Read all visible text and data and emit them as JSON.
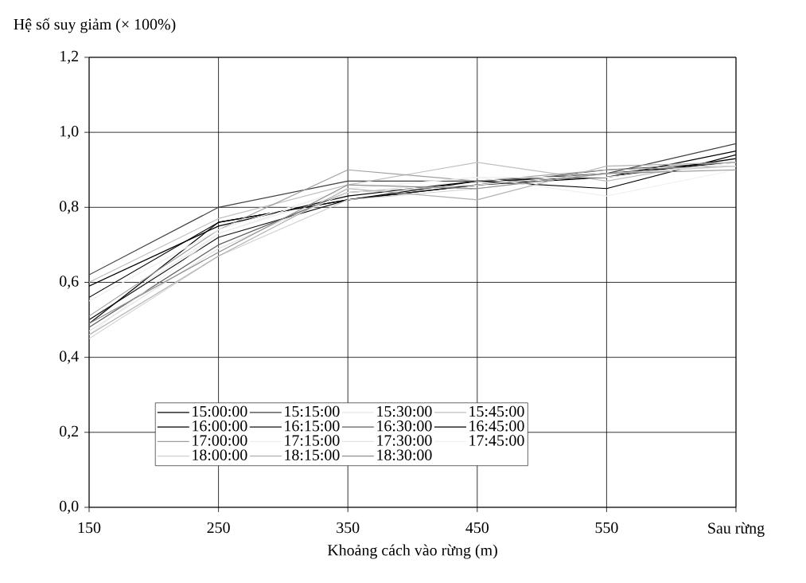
{
  "chart_data": {
    "type": "line",
    "xlabel": "Khoảng cách vào rừng (m)",
    "ylabel": "Hệ số suy giảm (× 100%)",
    "categories": [
      "150",
      "250",
      "350",
      "450",
      "550",
      "Sau rừng"
    ],
    "ylim": [
      0,
      1.2
    ],
    "yticks": [
      {
        "value": 0,
        "label": "0,0"
      },
      {
        "value": 0.2,
        "label": "0,2"
      },
      {
        "value": 0.4,
        "label": "0,4"
      },
      {
        "value": 0.6,
        "label": "0,6"
      },
      {
        "value": 0.8,
        "label": "0,8"
      },
      {
        "value": 1.0,
        "label": "1,0"
      },
      {
        "value": 1.2,
        "label": "1,2"
      }
    ],
    "grid": true,
    "legend": "bottom",
    "line_style": "solid",
    "marker": "none",
    "series": [
      {
        "name": "15:00:00",
        "color": "#000000",
        "values": [
          0.56,
          0.76,
          0.82,
          0.86,
          0.88,
          0.95
        ]
      },
      {
        "name": "15:15:00",
        "color": "#404040",
        "values": [
          0.62,
          0.8,
          0.87,
          0.87,
          0.89,
          0.97
        ]
      },
      {
        "name": "15:30:00",
        "color": "#e8e8e8",
        "values": [
          0.5,
          0.73,
          0.84,
          0.87,
          0.88,
          0.93
        ]
      },
      {
        "name": "15:45:00",
        "color": "#c0c0c0",
        "values": [
          0.6,
          0.77,
          0.86,
          0.92,
          0.87,
          0.93
        ]
      },
      {
        "name": "16:00:00",
        "color": "#000000",
        "values": [
          0.49,
          0.76,
          0.82,
          0.87,
          0.85,
          0.94
        ]
      },
      {
        "name": "16:15:00",
        "color": "#101010",
        "values": [
          0.5,
          0.72,
          0.82,
          0.86,
          0.89,
          0.92
        ]
      },
      {
        "name": "16:30:00",
        "color": "#606060",
        "values": [
          0.48,
          0.7,
          0.84,
          0.86,
          0.9,
          0.92
        ]
      },
      {
        "name": "16:45:00",
        "color": "#000000",
        "values": [
          0.59,
          0.75,
          0.83,
          0.87,
          0.88,
          0.93
        ]
      },
      {
        "name": "17:00:00",
        "color": "#a0a0a0",
        "values": [
          0.51,
          0.74,
          0.9,
          0.87,
          0.9,
          0.91
        ]
      },
      {
        "name": "17:15:00",
        "color": "#eeeeee",
        "values": [
          0.46,
          0.73,
          0.85,
          0.88,
          0.88,
          0.92
        ]
      },
      {
        "name": "17:30:00",
        "color": "#e4e4e4",
        "values": [
          0.47,
          0.69,
          0.84,
          0.86,
          0.89,
          0.91
        ]
      },
      {
        "name": "17:45:00",
        "color": "#f0f0f0",
        "values": [
          0.55,
          0.74,
          0.85,
          0.88,
          0.83,
          0.9
        ]
      },
      {
        "name": "18:00:00",
        "color": "#d0d0d0",
        "values": [
          0.45,
          0.67,
          0.82,
          0.85,
          0.89,
          0.91
        ]
      },
      {
        "name": "18:15:00",
        "color": "#b0b0b0",
        "values": [
          0.46,
          0.67,
          0.85,
          0.82,
          0.91,
          0.92
        ]
      },
      {
        "name": "18:30:00",
        "color": "#909090",
        "values": [
          0.49,
          0.68,
          0.86,
          0.85,
          0.89,
          0.9
        ]
      }
    ]
  }
}
